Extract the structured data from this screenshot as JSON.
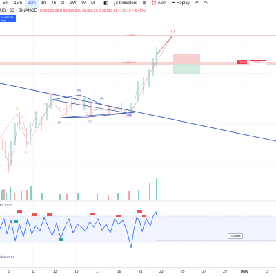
{
  "toolbar": {
    "timeframes": [
      "5m",
      "15m",
      "30m",
      "1h",
      "4h",
      "D",
      "2W",
      "W",
      "M"
    ],
    "active_timeframe": "30m",
    "indicators_label": "Indicators",
    "alert_label": "Alert",
    "replay_label": "Replay"
  },
  "symbol": {
    "name": "US · 3D · BINANCE",
    "ohlc": "H 93,035.09  H 93,354.60  L 92,603.20  C 92,880.21  −175.19 (−0.40%)",
    "price_box": "93,987.85",
    "price_box_sub": "Buy"
  },
  "annotations": {
    "wave_C": "(C)",
    "wave_A": "(A)",
    "wave_B": "(B)",
    "wave_D": "(D)",
    "wave_E": "(E)",
    "wave_A_small": "(A)",
    "wave_C_small": "(C)",
    "wave_1": "(1)",
    "wave_2": "(2)",
    "wave_3": "(3)",
    "wave_4": "(4)",
    "wave_5": "(5)",
    "level_top": "1.1.882",
    "level_mid": "0.618 / 0.5",
    "pos_label": "−0.01",
    "pos_sub": "−13.07 (−)",
    "rsi_box": "720 bars"
  },
  "rsi": {
    "title": "tol",
    "value": "74.47"
  },
  "volume": {
    "label": "ules",
    "value": "67.03"
  },
  "xaxis": {
    "labels": [
      "9",
      "11",
      "13",
      "15",
      "17",
      "19",
      "21",
      "23",
      "25",
      "27",
      "29",
      "May",
      "3"
    ]
  },
  "colors": {
    "bull": "#26a69a",
    "bear": "#ef5350",
    "wave_red": "#e0514b",
    "wave_blue": "#2a52be",
    "wave_orange": "#f0a24b",
    "trend": "#3d64c4",
    "rsi_line": "#2962ff",
    "rsi_band": "#e8efff"
  }
}
